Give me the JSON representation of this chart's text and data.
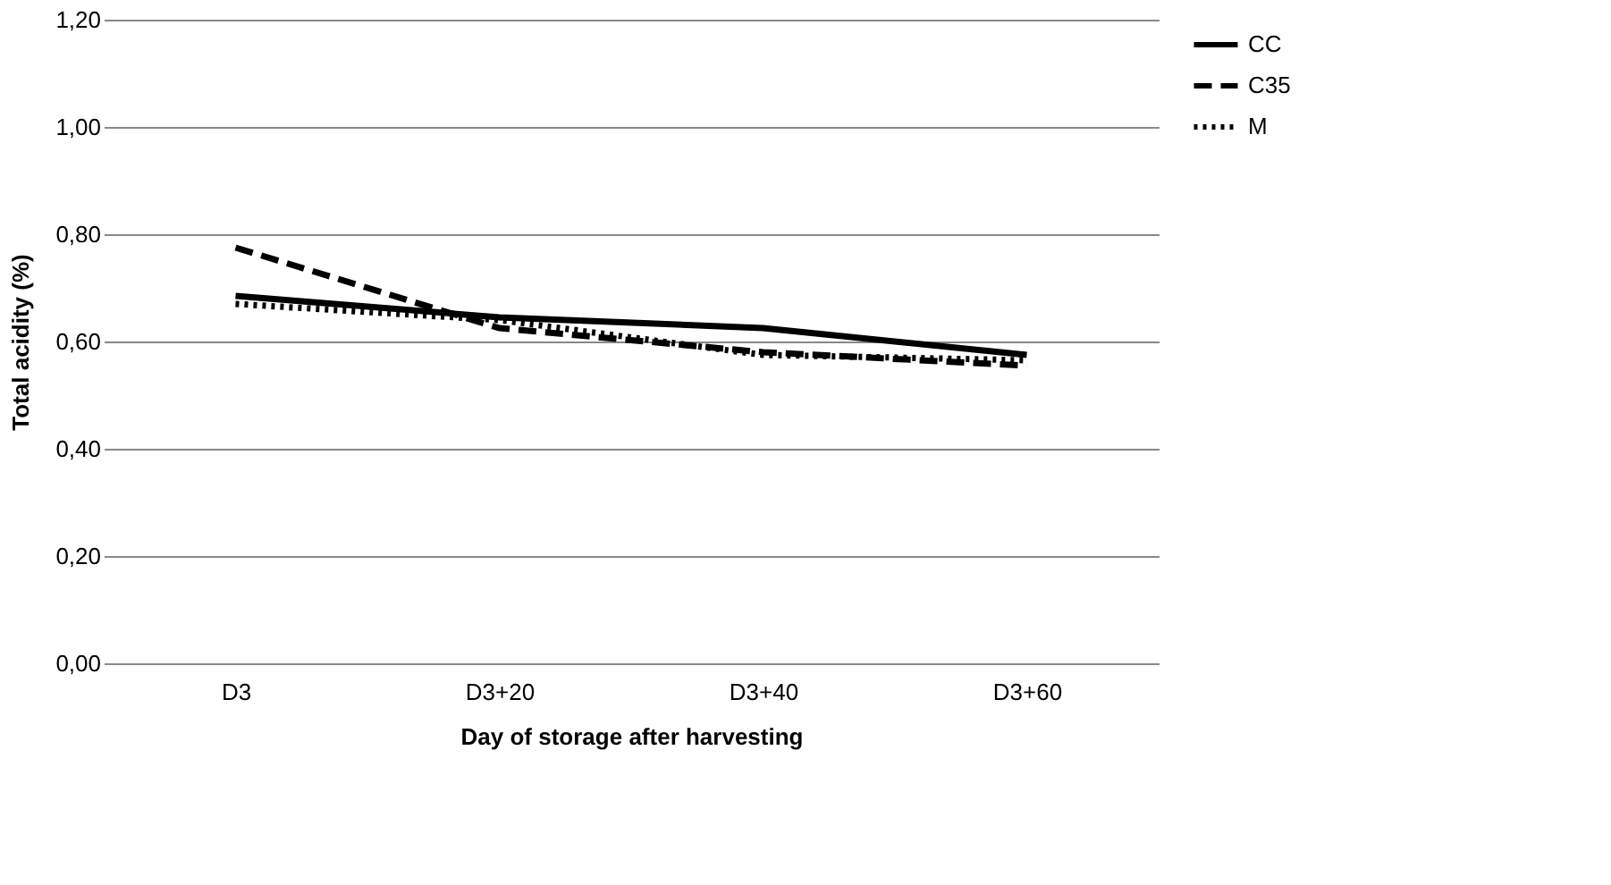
{
  "chart_data": {
    "type": "line",
    "xlabel": "Day of storage after harvesting",
    "ylabel": "Total acidity (%)",
    "categories": [
      "D3",
      "D3+20",
      "D3+40",
      "D3+60"
    ],
    "series": [
      {
        "name": "CC",
        "color": "#000000",
        "line_style": "solid",
        "values": [
          0.685,
          0.645,
          0.625,
          0.575
        ]
      },
      {
        "name": "C35",
        "color": "#000000",
        "line_style": "dashed",
        "values": [
          0.775,
          0.625,
          0.58,
          0.555
        ]
      },
      {
        "name": "M",
        "color": "#000000",
        "line_style": "dotted",
        "values": [
          0.67,
          0.64,
          0.575,
          0.565
        ]
      }
    ],
    "ylim": [
      0,
      1.2
    ],
    "yticks": [
      {
        "value": 0,
        "label": "0,00"
      },
      {
        "value": 0.2,
        "label": "0,20"
      },
      {
        "value": 0.4,
        "label": "0,40"
      },
      {
        "value": 0.6,
        "label": "0,60"
      },
      {
        "value": 0.8,
        "label": "0,80"
      },
      {
        "value": 1.0,
        "label": "1,00"
      },
      {
        "value": 1.2,
        "label": "1,20"
      }
    ],
    "grid": "y",
    "legend": "right",
    "marker": "none"
  }
}
